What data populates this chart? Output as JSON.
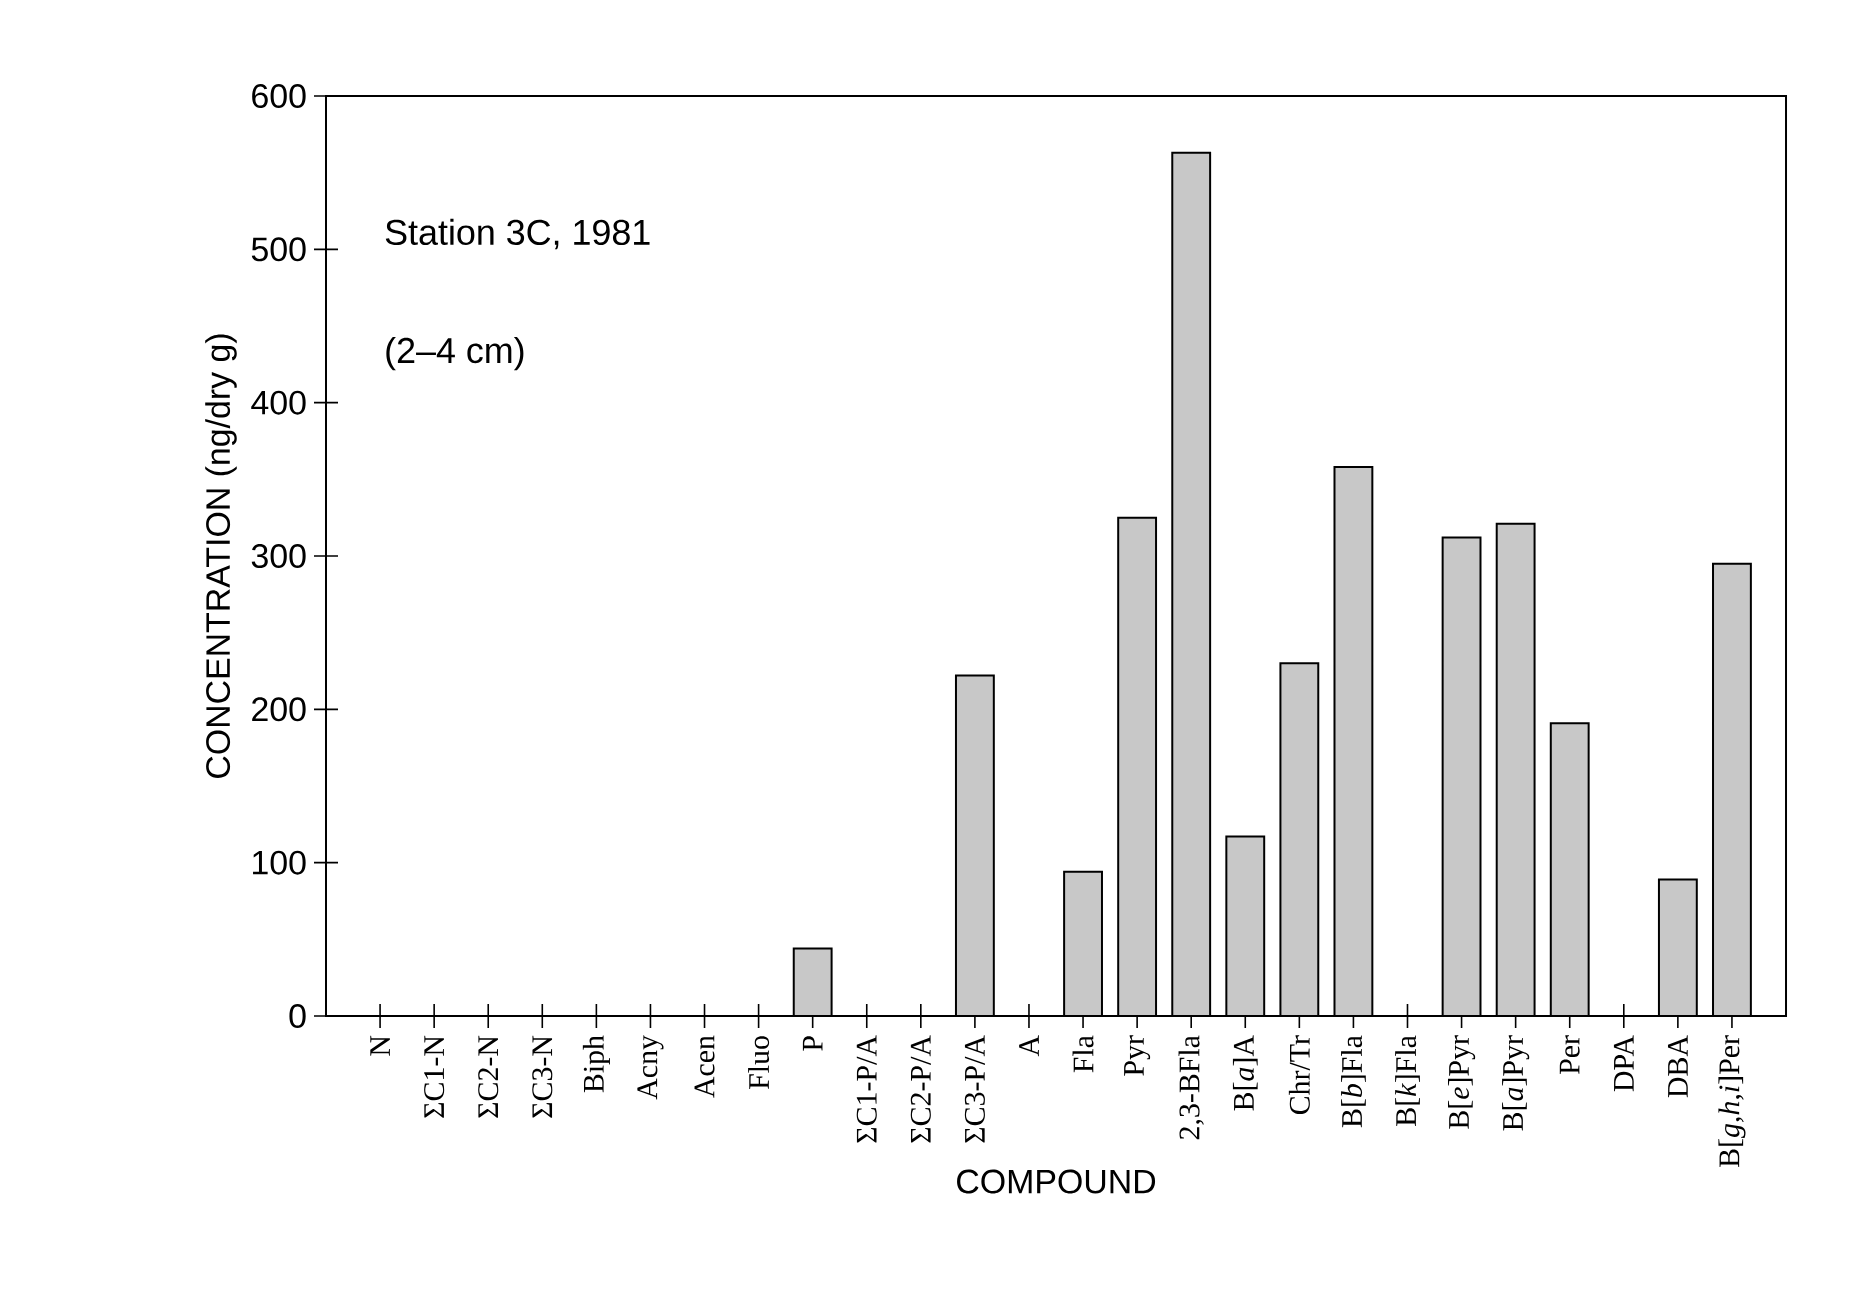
{
  "chart_data": {
    "type": "bar",
    "xlabel": "COMPOUND",
    "ylabel": "CONCENTRATION (ng/dry g)",
    "annotations": [
      "Station 3C, 1981",
      "(2–4 cm)"
    ],
    "categories": [
      "N",
      "ΣC1-N",
      "ΣC2-N",
      "ΣC3-N",
      "Biph",
      "Acny",
      "Acen",
      "Fluo",
      "P",
      "ΣC1-P/A",
      "ΣC2-P/A",
      "ΣC3-P/A",
      "A",
      "Fla",
      "Pyr",
      "2,3-BFla",
      "B[*a*]A",
      "Chr/Tr",
      "B[*b*]Fla",
      "B[*k*]Fla",
      "B[*e*]Pyr",
      "B[*a*]Pyr",
      "Per",
      "DPA",
      "DBA",
      "B[*g,h,i*]Per"
    ],
    "values": [
      0,
      0,
      0,
      0,
      0,
      0,
      0,
      0,
      44,
      0,
      0,
      222,
      0,
      94,
      325,
      563,
      117,
      230,
      358,
      0,
      312,
      321,
      191,
      0,
      89,
      295
    ],
    "color": "#c8c8c8",
    "ylim": [
      0,
      600
    ],
    "yticks": [
      0,
      100,
      200,
      300,
      400,
      500,
      600
    ],
    "grid": false
  }
}
